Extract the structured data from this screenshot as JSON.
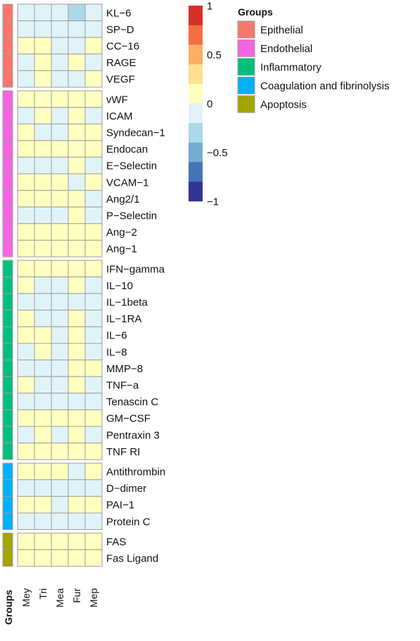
{
  "chart_data": {
    "type": "heatmap",
    "columns": [
      "Mey",
      "Tri",
      "Mea",
      "Fur",
      "Mep"
    ],
    "row_annotation_title": "Groups",
    "groups": [
      {
        "name": "Epithelial",
        "color": "#F8766D"
      },
      {
        "name": "Endothelial",
        "color": "#F564E3"
      },
      {
        "name": "Inflammatory",
        "color": "#00BF7D"
      },
      {
        "name": "Coagulation and fibrinolysis",
        "color": "#00B0F6"
      },
      {
        "name": "Apoptosis",
        "color": "#A3A500"
      }
    ],
    "rows": [
      {
        "label": "KL−6",
        "group": "Epithelial",
        "values": [
          -0.05,
          -0.05,
          -0.05,
          -0.3,
          -0.05
        ]
      },
      {
        "label": "SP−D",
        "group": "Epithelial",
        "values": [
          -0.05,
          -0.05,
          -0.05,
          -0.05,
          -0.05
        ]
      },
      {
        "label": "CC−16",
        "group": "Epithelial",
        "values": [
          0.05,
          0.05,
          -0.05,
          -0.05,
          0.05
        ]
      },
      {
        "label": "RAGE",
        "group": "Epithelial",
        "values": [
          -0.05,
          0.05,
          -0.05,
          0.05,
          -0.05
        ]
      },
      {
        "label": "VEGF",
        "group": "Epithelial",
        "values": [
          -0.05,
          0.05,
          -0.05,
          -0.05,
          0.05
        ]
      },
      {
        "label": "vWF",
        "group": "Endothelial",
        "values": [
          0.05,
          0.05,
          0.05,
          0.05,
          0.05
        ]
      },
      {
        "label": "ICAM",
        "group": "Endothelial",
        "values": [
          -0.05,
          0.05,
          -0.05,
          0.05,
          -0.05
        ]
      },
      {
        "label": "Syndecan−1",
        "group": "Endothelial",
        "values": [
          0.05,
          -0.05,
          -0.05,
          0.05,
          0.05
        ]
      },
      {
        "label": "Endocan",
        "group": "Endothelial",
        "values": [
          0.05,
          0.05,
          0.05,
          0.05,
          0.05
        ]
      },
      {
        "label": "E−Selectin",
        "group": "Endothelial",
        "values": [
          -0.05,
          -0.05,
          -0.05,
          0.05,
          -0.05
        ]
      },
      {
        "label": "VCAM−1",
        "group": "Endothelial",
        "values": [
          0.05,
          0.05,
          0.05,
          -0.05,
          0.05
        ]
      },
      {
        "label": "Ang2/1",
        "group": "Endothelial",
        "values": [
          0.05,
          0.05,
          0.05,
          0.05,
          -0.05
        ]
      },
      {
        "label": "P−Selectin",
        "group": "Endothelial",
        "values": [
          -0.05,
          -0.05,
          -0.05,
          0.05,
          -0.05
        ]
      },
      {
        "label": "Ang−2",
        "group": "Endothelial",
        "values": [
          0.05,
          0.05,
          0.05,
          0.05,
          0.05
        ]
      },
      {
        "label": "Ang−1",
        "group": "Endothelial",
        "values": [
          0.05,
          0.05,
          0.05,
          0.05,
          0.05
        ]
      },
      {
        "label": "IFN−gamma",
        "group": "Inflammatory",
        "values": [
          0.05,
          0.05,
          0.05,
          0.05,
          0.05
        ]
      },
      {
        "label": "IL−10",
        "group": "Inflammatory",
        "values": [
          0.05,
          -0.05,
          -0.05,
          0.05,
          -0.05
        ]
      },
      {
        "label": "IL−1beta",
        "group": "Inflammatory",
        "values": [
          -0.05,
          -0.05,
          -0.05,
          -0.05,
          -0.05
        ]
      },
      {
        "label": "IL−1RA",
        "group": "Inflammatory",
        "values": [
          0.05,
          -0.05,
          -0.05,
          0.05,
          -0.05
        ]
      },
      {
        "label": "IL−6",
        "group": "Inflammatory",
        "values": [
          0.05,
          0.05,
          -0.05,
          0.05,
          -0.05
        ]
      },
      {
        "label": "IL−8",
        "group": "Inflammatory",
        "values": [
          -0.05,
          0.05,
          -0.05,
          0.05,
          -0.05
        ]
      },
      {
        "label": "MMP−8",
        "group": "Inflammatory",
        "values": [
          -0.05,
          -0.05,
          -0.05,
          0.05,
          0.05
        ]
      },
      {
        "label": "TNF−a",
        "group": "Inflammatory",
        "values": [
          0.05,
          -0.05,
          -0.05,
          0.05,
          -0.05
        ]
      },
      {
        "label": "Tenascin C",
        "group": "Inflammatory",
        "values": [
          -0.05,
          -0.05,
          -0.05,
          -0.05,
          -0.05
        ]
      },
      {
        "label": "GM−CSF",
        "group": "Inflammatory",
        "values": [
          0.05,
          0.05,
          0.05,
          0.05,
          0.05
        ]
      },
      {
        "label": "Pentraxin 3",
        "group": "Inflammatory",
        "values": [
          -0.05,
          0.05,
          -0.05,
          0.05,
          -0.05
        ]
      },
      {
        "label": "TNF RI",
        "group": "Inflammatory",
        "values": [
          0.05,
          0.05,
          0.05,
          0.05,
          0.05
        ]
      },
      {
        "label": "Antithrombin",
        "group": "Coagulation and fibrinolysis",
        "values": [
          0.05,
          0.05,
          0.05,
          -0.05,
          0.05
        ]
      },
      {
        "label": "D−dimer",
        "group": "Coagulation and fibrinolysis",
        "values": [
          -0.05,
          -0.05,
          -0.05,
          -0.05,
          -0.05
        ]
      },
      {
        "label": "PAI−1",
        "group": "Coagulation and fibrinolysis",
        "values": [
          0.05,
          0.05,
          -0.05,
          0.05,
          0.05
        ]
      },
      {
        "label": "Protein C",
        "group": "Coagulation and fibrinolysis",
        "values": [
          -0.05,
          -0.05,
          -0.05,
          -0.05,
          -0.05
        ]
      },
      {
        "label": "FAS",
        "group": "Apoptosis",
        "values": [
          0.05,
          0.05,
          0.05,
          0.05,
          0.05
        ]
      },
      {
        "label": "Fas Ligand",
        "group": "Apoptosis",
        "values": [
          0.05,
          0.05,
          0.05,
          0.05,
          0.05
        ]
      }
    ],
    "colorbar": {
      "range": [
        -1,
        1
      ],
      "tick_values": [
        1,
        0.5,
        0,
        -0.5,
        -1
      ],
      "tick_labels": [
        "1",
        "0.5",
        "0",
        "−0.5",
        "−1"
      ],
      "colors": [
        "#D73027",
        "#F46D43",
        "#FDAE61",
        "#FEE090",
        "#FFFFBF",
        "#E0F3F8",
        "#ABD9E9",
        "#74ADD1",
        "#4575B4",
        "#313695"
      ]
    },
    "legend": {
      "title": "Groups",
      "placement": "right"
    }
  }
}
